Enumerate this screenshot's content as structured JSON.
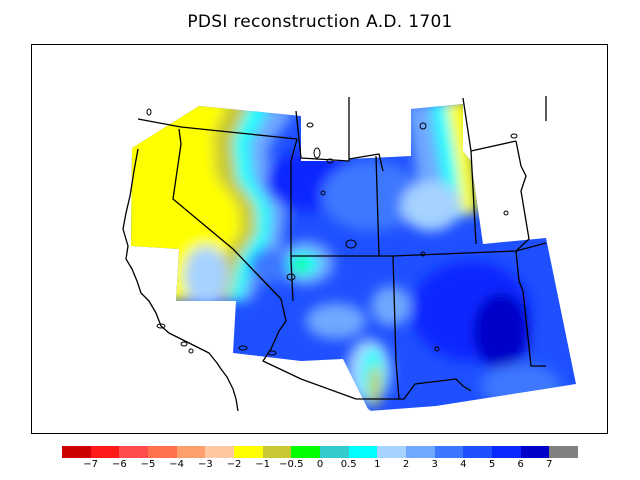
{
  "title": "PDSI reconstruction A.D. 1701",
  "legend": {
    "colors": [
      "#cc0000",
      "#ff1a1a",
      "#ff4d4d",
      "#ff704d",
      "#ff9f6b",
      "#ffc8a0",
      "#ffff00",
      "#c8c832",
      "#00ff00",
      "#33cccc",
      "#00ffff",
      "#a5d2ff",
      "#6fa8ff",
      "#3c78ff",
      "#1e50ff",
      "#0a28ff",
      "#0000c8",
      "#808080"
    ],
    "labels": [
      "−7",
      "−6",
      "−5",
      "−4",
      "−3",
      "−2",
      "−1",
      "−0.5",
      "0",
      "0.5",
      "1",
      "2",
      "3",
      "4",
      "5",
      "6",
      "7"
    ]
  }
}
